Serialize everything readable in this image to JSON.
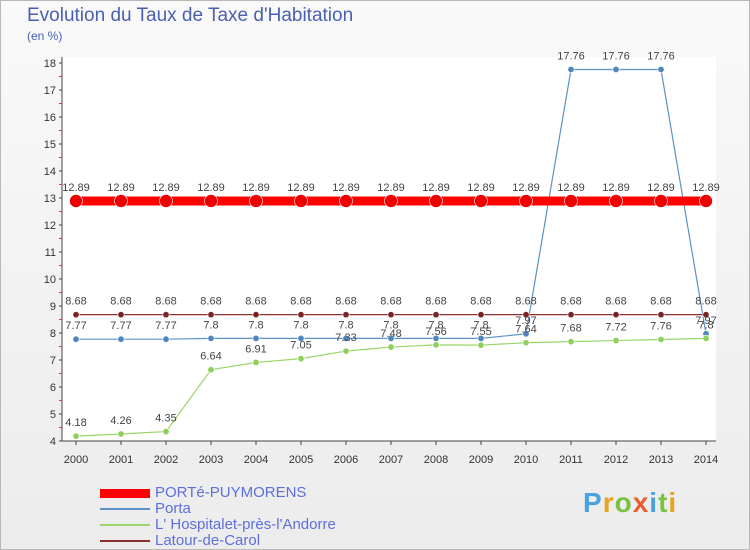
{
  "chart_data": {
    "type": "line",
    "title": "Evolution du Taux de Taxe d'Habitation",
    "subtitle": "(en %)",
    "xlabel": "",
    "ylabel": "(en %)",
    "categories": [
      "2000",
      "2001",
      "2002",
      "2003",
      "2004",
      "2005",
      "2006",
      "2007",
      "2008",
      "2009",
      "2010",
      "2011",
      "2012",
      "2013",
      "2014"
    ],
    "ylim": [
      4,
      18
    ],
    "yticks": [
      4,
      5,
      6,
      7,
      8,
      9,
      10,
      11,
      12,
      13,
      14,
      15,
      16,
      17,
      18
    ],
    "series": [
      {
        "name": "PORTé-PUYMORENS",
        "color": "#ff0000",
        "values": [
          12.89,
          12.89,
          12.89,
          12.89,
          12.89,
          12.89,
          12.89,
          12.89,
          12.89,
          12.89,
          12.89,
          12.89,
          12.89,
          12.89,
          12.89
        ],
        "labels": [
          "12.89",
          "12.89",
          "12.89",
          "12.89",
          "12.89",
          "12.89",
          "12.89",
          "12.89",
          "12.89",
          "12.89",
          "12.89",
          "12.89",
          "12.89",
          "12.89",
          "12.89"
        ]
      },
      {
        "name": "Porta",
        "color": "#5b93c8",
        "values": [
          7.77,
          7.77,
          7.77,
          7.8,
          7.8,
          7.8,
          7.8,
          7.8,
          7.8,
          7.8,
          7.97,
          17.76,
          17.76,
          17.76,
          7.97
        ],
        "labels": [
          "7.77",
          "7.77",
          "7.77",
          "7.8",
          "7.8",
          "7.8",
          "7.8",
          "7.8",
          "7.8",
          "7.8",
          "7.97",
          "17.76",
          "17.76",
          "17.76",
          "7.97"
        ]
      },
      {
        "name": "L' Hospitalet-près-l'Andorre",
        "color": "#9ad66a",
        "values": [
          4.18,
          4.26,
          4.35,
          6.64,
          6.91,
          7.05,
          7.33,
          7.48,
          7.56,
          7.55,
          7.64,
          7.68,
          7.72,
          7.76,
          7.8
        ],
        "labels": [
          "4.18",
          "4.26",
          "4.35",
          "6.64",
          "6.91",
          "7.05",
          "7.33",
          "7.48",
          "7.56",
          "7.55",
          "7.64",
          "7.68",
          "7.72",
          "7.76",
          "7.8"
        ]
      },
      {
        "name": "Latour-de-Carol",
        "color": "#8b2f2f",
        "values": [
          8.68,
          8.68,
          8.68,
          8.68,
          8.68,
          8.68,
          8.68,
          8.68,
          8.68,
          8.68,
          8.68,
          8.68,
          8.68,
          8.68,
          8.68
        ],
        "labels": [
          "8.68",
          "8.68",
          "8.68",
          "8.68",
          "8.68",
          "8.68",
          "8.68",
          "8.68",
          "8.68",
          "8.68",
          "8.68",
          "8.68",
          "8.68",
          "8.68",
          "8.68"
        ]
      }
    ]
  },
  "logo": {
    "text": "Proxiti",
    "letters": [
      "P",
      "r",
      "o",
      "x",
      "i",
      "t",
      "i"
    ]
  }
}
